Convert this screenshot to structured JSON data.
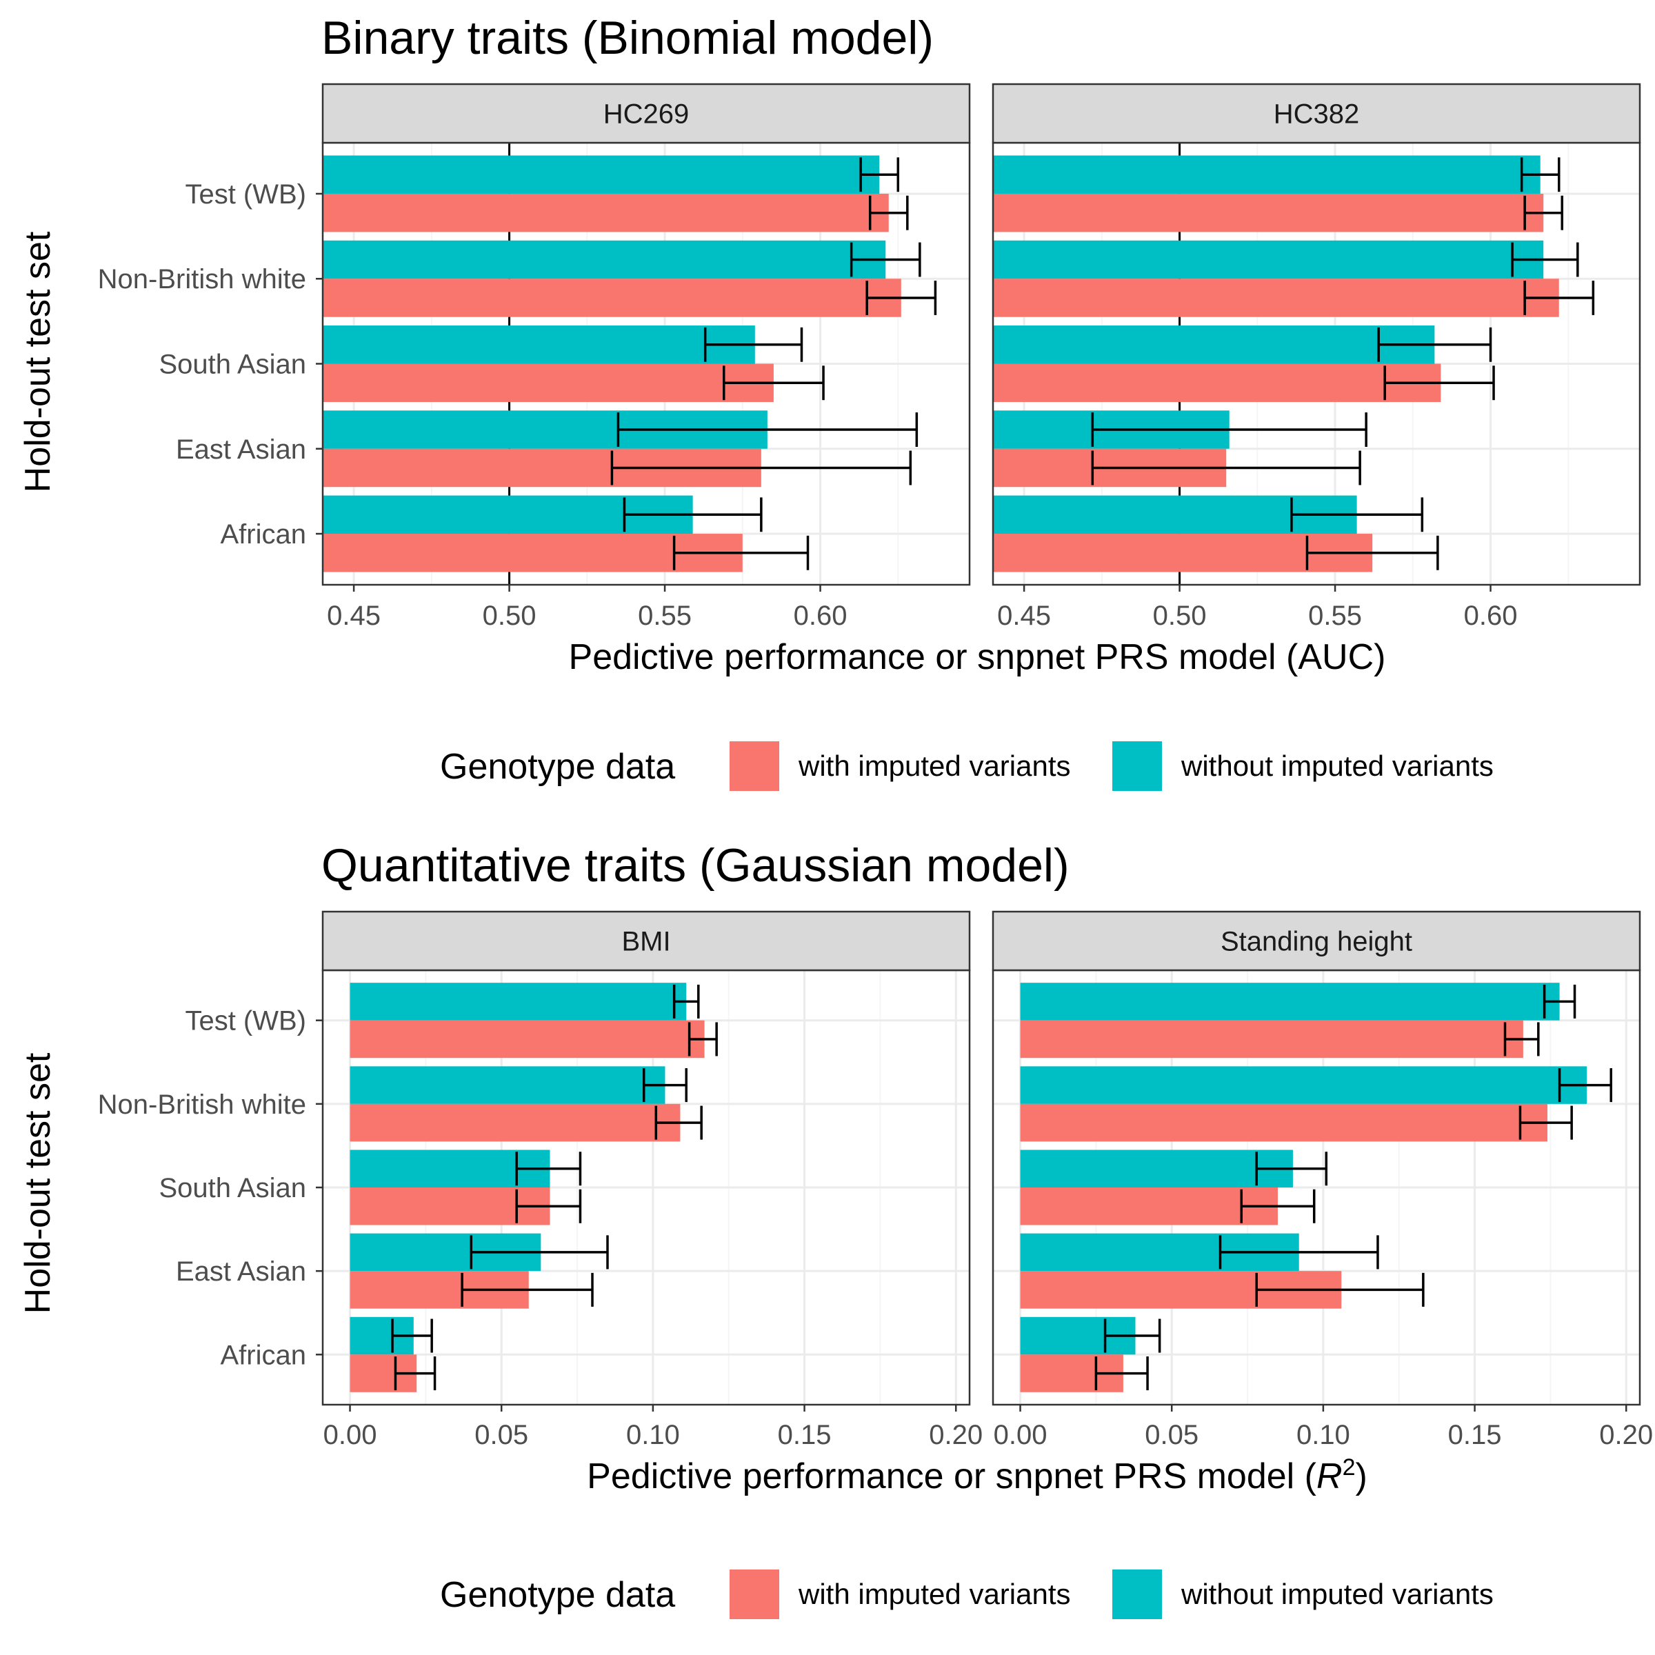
{
  "colors": {
    "with": "#F8766D",
    "without": "#00BFC4",
    "strip_bg": "#D9D9D9",
    "grid_major": "#EBEBEB",
    "grid_minor": "#F5F5F5",
    "panel_border": "#333333"
  },
  "legend": {
    "title": "Genotype data",
    "items": [
      {
        "key": "with",
        "label": "with imputed variants"
      },
      {
        "key": "without",
        "label": "without imputed variants"
      }
    ],
    "position": "bottom"
  },
  "chart_data": [
    {
      "type": "bar",
      "orientation": "horizontal",
      "title": "Binary traits (Binomial model)",
      "xlabel": "Pedictive performance or snpnet PRS model (AUC)",
      "ylabel": "Hold-out test set",
      "categories": [
        "Test (WB)",
        "Non-British white",
        "South Asian",
        "East Asian",
        "African"
      ],
      "xlim": [
        0.44,
        0.648
      ],
      "bar_base": 0.44,
      "xticks": [
        "0.45",
        "0.50",
        "0.55",
        "0.60"
      ],
      "ref_line": 0.5,
      "grid": true,
      "panels": [
        {
          "strip": "HC269",
          "series": [
            {
              "key": "without",
              "values": [
                0.619,
                0.621,
                0.579,
                0.583,
                0.559
              ],
              "lower": [
                0.613,
                0.61,
                0.563,
                0.535,
                0.537
              ],
              "upper": [
                0.625,
                0.632,
                0.594,
                0.631,
                0.581
              ]
            },
            {
              "key": "with",
              "values": [
                0.622,
                0.626,
                0.585,
                0.581,
                0.575
              ],
              "lower": [
                0.616,
                0.615,
                0.569,
                0.533,
                0.553
              ],
              "upper": [
                0.628,
                0.637,
                0.601,
                0.629,
                0.596
              ]
            }
          ]
        },
        {
          "strip": "HC382",
          "series": [
            {
              "key": "without",
              "values": [
                0.616,
                0.617,
                0.582,
                0.516,
                0.557
              ],
              "lower": [
                0.61,
                0.607,
                0.564,
                0.472,
                0.536
              ],
              "upper": [
                0.622,
                0.628,
                0.6,
                0.56,
                0.578
              ]
            },
            {
              "key": "with",
              "values": [
                0.617,
                0.622,
                0.584,
                0.515,
                0.562
              ],
              "lower": [
                0.611,
                0.611,
                0.566,
                0.472,
                0.541
              ],
              "upper": [
                0.623,
                0.633,
                0.601,
                0.558,
                0.583
              ]
            }
          ]
        }
      ]
    },
    {
      "type": "bar",
      "orientation": "horizontal",
      "title": "Quantitative traits (Gaussian model)",
      "xlabel_prefix": "Pedictive performance or snpnet PRS model (",
      "xlabel_var": "R",
      "xlabel_sup": "2",
      "xlabel_suffix": ")",
      "ylabel": "Hold-out test set",
      "categories": [
        "Test (WB)",
        "Non-British white",
        "South Asian",
        "East Asian",
        "African"
      ],
      "xlim": [
        -0.009,
        0.2045
      ],
      "bar_base": 0,
      "xticks": [
        "0.00",
        "0.05",
        "0.10",
        "0.15",
        "0.20"
      ],
      "grid": true,
      "panels": [
        {
          "strip": "BMI",
          "series": [
            {
              "key": "without",
              "values": [
                0.111,
                0.104,
                0.066,
                0.063,
                0.021
              ],
              "lower": [
                0.107,
                0.097,
                0.055,
                0.04,
                0.014
              ],
              "upper": [
                0.115,
                0.111,
                0.076,
                0.085,
                0.027
              ]
            },
            {
              "key": "with",
              "values": [
                0.117,
                0.109,
                0.066,
                0.059,
                0.022
              ],
              "lower": [
                0.112,
                0.101,
                0.055,
                0.037,
                0.015
              ],
              "upper": [
                0.121,
                0.116,
                0.076,
                0.08,
                0.028
              ]
            }
          ]
        },
        {
          "strip": "Standing height",
          "series": [
            {
              "key": "without",
              "values": [
                0.178,
                0.187,
                0.09,
                0.092,
                0.038
              ],
              "lower": [
                0.173,
                0.178,
                0.078,
                0.066,
                0.028
              ],
              "upper": [
                0.183,
                0.195,
                0.101,
                0.118,
                0.046
              ]
            },
            {
              "key": "with",
              "values": [
                0.166,
                0.174,
                0.085,
                0.106,
                0.034
              ],
              "lower": [
                0.16,
                0.165,
                0.073,
                0.078,
                0.025
              ],
              "upper": [
                0.171,
                0.182,
                0.097,
                0.133,
                0.042
              ]
            }
          ]
        }
      ]
    }
  ]
}
